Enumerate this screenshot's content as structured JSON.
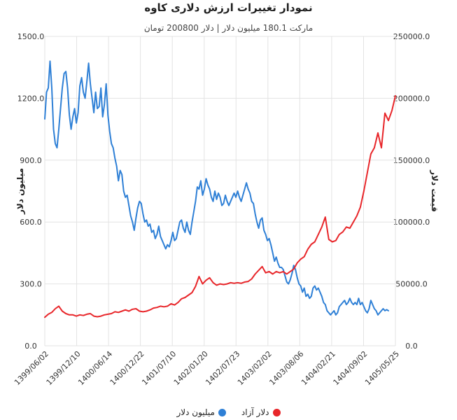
{
  "chart_data": {
    "type": "line",
    "title": "نمودار تغییرات ارزش دلاری کاوه",
    "subtitle": "مارکت 180.1 میلیون دلار | دلار 200800 تومان",
    "x_ticks": [
      "1399/06/02",
      "1399/12/10",
      "1400/06/14",
      "1400/12/22",
      "1401/07/10",
      "1402/01/20",
      "1402/07/23",
      "1403/02/02",
      "1403/08/06",
      "1404/02/21",
      "1404/09/02",
      "1405/05/25"
    ],
    "x_range": [
      0,
      100
    ],
    "y_left": {
      "label": "میلیون دلار",
      "lim": [
        0,
        1500
      ],
      "ticks": [
        "1500.0",
        "1200.0",
        "900.0",
        "600.0",
        "300.0",
        "0.0"
      ]
    },
    "y_right": {
      "label": "قیمت دلار",
      "lim": [
        0,
        250000
      ],
      "ticks": [
        "250000.0",
        "200000.0",
        "150000.0",
        "100000.0",
        "50000.0",
        "0.0"
      ]
    },
    "grid": true,
    "legend_position": "bottom",
    "series": [
      {
        "name": "میلیون دلار",
        "axis": "left",
        "color": "#2f80d6",
        "points": [
          [
            0,
            1100
          ],
          [
            0.5,
            1230
          ],
          [
            1.0,
            1250
          ],
          [
            1.5,
            1380
          ],
          [
            2.0,
            1250
          ],
          [
            2.5,
            1050
          ],
          [
            3.0,
            980
          ],
          [
            3.5,
            960
          ],
          [
            4.0,
            1050
          ],
          [
            4.5,
            1150
          ],
          [
            5.0,
            1250
          ],
          [
            5.5,
            1320
          ],
          [
            6.0,
            1330
          ],
          [
            6.5,
            1250
          ],
          [
            7.0,
            1120
          ],
          [
            7.5,
            1050
          ],
          [
            8.0,
            1110
          ],
          [
            8.5,
            1150
          ],
          [
            9.0,
            1080
          ],
          [
            9.5,
            1130
          ],
          [
            10.0,
            1260
          ],
          [
            10.5,
            1300
          ],
          [
            11.0,
            1230
          ],
          [
            11.5,
            1200
          ],
          [
            12.0,
            1280
          ],
          [
            12.5,
            1370
          ],
          [
            13.0,
            1270
          ],
          [
            13.5,
            1200
          ],
          [
            14.0,
            1130
          ],
          [
            14.5,
            1230
          ],
          [
            15.0,
            1150
          ],
          [
            15.5,
            1160
          ],
          [
            16.0,
            1250
          ],
          [
            16.5,
            1110
          ],
          [
            17.0,
            1170
          ],
          [
            17.5,
            1270
          ],
          [
            18.0,
            1120
          ],
          [
            18.5,
            1040
          ],
          [
            19.0,
            980
          ],
          [
            19.5,
            960
          ],
          [
            20.0,
            910
          ],
          [
            20.5,
            870
          ],
          [
            21.0,
            800
          ],
          [
            21.5,
            850
          ],
          [
            22.0,
            830
          ],
          [
            22.5,
            750
          ],
          [
            23.0,
            720
          ],
          [
            23.5,
            730
          ],
          [
            24.0,
            680
          ],
          [
            24.5,
            630
          ],
          [
            25.0,
            600
          ],
          [
            25.5,
            560
          ],
          [
            26.0,
            620
          ],
          [
            26.5,
            670
          ],
          [
            27.0,
            700
          ],
          [
            27.5,
            690
          ],
          [
            28.0,
            640
          ],
          [
            28.5,
            600
          ],
          [
            29.0,
            610
          ],
          [
            29.5,
            580
          ],
          [
            30.0,
            590
          ],
          [
            30.5,
            550
          ],
          [
            31.0,
            560
          ],
          [
            31.5,
            520
          ],
          [
            32.0,
            540
          ],
          [
            32.5,
            580
          ],
          [
            33.0,
            530
          ],
          [
            33.5,
            510
          ],
          [
            34.0,
            490
          ],
          [
            34.5,
            470
          ],
          [
            35.0,
            490
          ],
          [
            35.5,
            480
          ],
          [
            36.0,
            510
          ],
          [
            36.5,
            550
          ],
          [
            37.0,
            510
          ],
          [
            37.5,
            520
          ],
          [
            38.0,
            560
          ],
          [
            38.5,
            600
          ],
          [
            39.0,
            610
          ],
          [
            39.5,
            570
          ],
          [
            40.0,
            550
          ],
          [
            40.5,
            600
          ],
          [
            41.0,
            560
          ],
          [
            41.5,
            540
          ],
          [
            42.0,
            600
          ],
          [
            42.5,
            650
          ],
          [
            43.0,
            700
          ],
          [
            43.5,
            770
          ],
          [
            44.0,
            760
          ],
          [
            44.5,
            800
          ],
          [
            45.0,
            730
          ],
          [
            45.5,
            760
          ],
          [
            46.0,
            810
          ],
          [
            46.5,
            780
          ],
          [
            47.0,
            760
          ],
          [
            47.5,
            720
          ],
          [
            48.0,
            700
          ],
          [
            48.5,
            750
          ],
          [
            49.0,
            710
          ],
          [
            49.5,
            740
          ],
          [
            50.0,
            720
          ],
          [
            50.5,
            680
          ],
          [
            51.0,
            690
          ],
          [
            51.5,
            730
          ],
          [
            52.0,
            700
          ],
          [
            52.5,
            680
          ],
          [
            53.0,
            700
          ],
          [
            53.5,
            720
          ],
          [
            54.0,
            740
          ],
          [
            54.5,
            720
          ],
          [
            55.0,
            750
          ],
          [
            55.5,
            720
          ],
          [
            56.0,
            700
          ],
          [
            56.5,
            730
          ],
          [
            57.0,
            760
          ],
          [
            57.5,
            790
          ],
          [
            58.0,
            760
          ],
          [
            58.5,
            740
          ],
          [
            59.0,
            700
          ],
          [
            59.5,
            690
          ],
          [
            60.0,
            640
          ],
          [
            60.5,
            600
          ],
          [
            61.0,
            570
          ],
          [
            61.5,
            610
          ],
          [
            62.0,
            620
          ],
          [
            62.5,
            560
          ],
          [
            63.0,
            540
          ],
          [
            63.5,
            510
          ],
          [
            64.0,
            520
          ],
          [
            64.5,
            490
          ],
          [
            65.0,
            450
          ],
          [
            65.5,
            410
          ],
          [
            66.0,
            430
          ],
          [
            66.5,
            400
          ],
          [
            67.0,
            380
          ],
          [
            67.5,
            380
          ],
          [
            68.0,
            370
          ],
          [
            68.5,
            340
          ],
          [
            69.0,
            310
          ],
          [
            69.5,
            300
          ],
          [
            70.0,
            320
          ],
          [
            70.5,
            350
          ],
          [
            71.0,
            390
          ],
          [
            71.5,
            370
          ],
          [
            72.0,
            330
          ],
          [
            72.5,
            300
          ],
          [
            73.0,
            290
          ],
          [
            73.5,
            260
          ],
          [
            74.0,
            280
          ],
          [
            74.5,
            240
          ],
          [
            75.0,
            250
          ],
          [
            75.5,
            230
          ],
          [
            76.0,
            240
          ],
          [
            76.5,
            280
          ],
          [
            77.0,
            290
          ],
          [
            77.5,
            270
          ],
          [
            78.0,
            280
          ],
          [
            78.5,
            260
          ],
          [
            79.0,
            240
          ],
          [
            79.5,
            210
          ],
          [
            80.0,
            200
          ],
          [
            80.5,
            170
          ],
          [
            81.0,
            160
          ],
          [
            81.5,
            150
          ],
          [
            82.0,
            160
          ],
          [
            82.5,
            170
          ],
          [
            83.0,
            150
          ],
          [
            83.5,
            160
          ],
          [
            84.0,
            190
          ],
          [
            84.5,
            200
          ],
          [
            85.0,
            210
          ],
          [
            85.5,
            220
          ],
          [
            86.0,
            200
          ],
          [
            86.5,
            210
          ],
          [
            87.0,
            230
          ],
          [
            87.5,
            210
          ],
          [
            88.0,
            200
          ],
          [
            88.5,
            210
          ],
          [
            89.0,
            200
          ],
          [
            89.5,
            230
          ],
          [
            90.0,
            200
          ],
          [
            90.5,
            210
          ],
          [
            91.0,
            190
          ],
          [
            91.5,
            170
          ],
          [
            92.0,
            160
          ],
          [
            92.5,
            180
          ],
          [
            93.0,
            220
          ],
          [
            93.5,
            200
          ],
          [
            94.0,
            180
          ],
          [
            94.5,
            170
          ],
          [
            95.0,
            150
          ],
          [
            95.5,
            160
          ],
          [
            96.0,
            170
          ],
          [
            96.5,
            180
          ],
          [
            97.0,
            170
          ],
          [
            97.5,
            175
          ],
          [
            98.0,
            170
          ]
        ]
      },
      {
        "name": "دلار آزاد",
        "axis": "right",
        "color": "#e8262a",
        "points": [
          [
            0,
            23000
          ],
          [
            1.0,
            25500
          ],
          [
            2.0,
            27000
          ],
          [
            3.0,
            30000
          ],
          [
            4.0,
            32000
          ],
          [
            5.0,
            28000
          ],
          [
            6.0,
            26000
          ],
          [
            7.0,
            25000
          ],
          [
            8.0,
            25000
          ],
          [
            9.0,
            24000
          ],
          [
            10.0,
            25000
          ],
          [
            11.0,
            24500
          ],
          [
            12.0,
            25500
          ],
          [
            13.0,
            26000
          ],
          [
            14.0,
            24000
          ],
          [
            15.0,
            23500
          ],
          [
            16.0,
            24000
          ],
          [
            17.0,
            25000
          ],
          [
            18.0,
            25500
          ],
          [
            19.0,
            26000
          ],
          [
            20.0,
            27500
          ],
          [
            21.0,
            27000
          ],
          [
            22.0,
            28000
          ],
          [
            23.0,
            29000
          ],
          [
            24.0,
            28000
          ],
          [
            25.0,
            29500
          ],
          [
            26.0,
            30000
          ],
          [
            27.0,
            28000
          ],
          [
            28.0,
            27500
          ],
          [
            29.0,
            28000
          ],
          [
            30.0,
            29000
          ],
          [
            31.0,
            30500
          ],
          [
            32.0,
            31000
          ],
          [
            33.0,
            32000
          ],
          [
            34.0,
            31500
          ],
          [
            35.0,
            32000
          ],
          [
            36.0,
            34000
          ],
          [
            37.0,
            33000
          ],
          [
            38.0,
            35000
          ],
          [
            39.0,
            38000
          ],
          [
            40.0,
            39000
          ],
          [
            41.0,
            41000
          ],
          [
            42.0,
            43000
          ],
          [
            43.0,
            48000
          ],
          [
            44.0,
            56000
          ],
          [
            45.0,
            50000
          ],
          [
            46.0,
            53000
          ],
          [
            47.0,
            55000
          ],
          [
            48.0,
            51000
          ],
          [
            49.0,
            49000
          ],
          [
            50.0,
            50000
          ],
          [
            51.0,
            49500
          ],
          [
            52.0,
            50000
          ],
          [
            53.0,
            51000
          ],
          [
            54.0,
            50500
          ],
          [
            55.0,
            51000
          ],
          [
            56.0,
            50500
          ],
          [
            57.0,
            51500
          ],
          [
            58.0,
            52000
          ],
          [
            59.0,
            54000
          ],
          [
            60.0,
            58000
          ],
          [
            61.0,
            61000
          ],
          [
            62.0,
            64000
          ],
          [
            63.0,
            59000
          ],
          [
            64.0,
            60000
          ],
          [
            65.0,
            58000
          ],
          [
            66.0,
            60000
          ],
          [
            67.0,
            59000
          ],
          [
            68.0,
            60000
          ],
          [
            69.0,
            58000
          ],
          [
            70.0,
            60000
          ],
          [
            71.0,
            62000
          ],
          [
            72.0,
            67000
          ],
          [
            73.0,
            70000
          ],
          [
            74.0,
            72000
          ],
          [
            75.0,
            78000
          ],
          [
            76.0,
            82000
          ],
          [
            77.0,
            84000
          ],
          [
            78.0,
            90000
          ],
          [
            79.0,
            96000
          ],
          [
            80.0,
            104000
          ],
          [
            81.0,
            86000
          ],
          [
            82.0,
            84000
          ],
          [
            83.0,
            85000
          ],
          [
            84.0,
            90000
          ],
          [
            85.0,
            92000
          ],
          [
            86.0,
            96000
          ],
          [
            87.0,
            95000
          ],
          [
            88.0,
            100000
          ],
          [
            89.0,
            105000
          ],
          [
            90.0,
            112000
          ],
          [
            91.0,
            125000
          ],
          [
            92.0,
            140000
          ],
          [
            93.0,
            155000
          ],
          [
            94.0,
            160000
          ],
          [
            95.0,
            172000
          ],
          [
            96.0,
            160000
          ],
          [
            97.0,
            188000
          ],
          [
            98.0,
            182000
          ],
          [
            99.0,
            190000
          ],
          [
            100.0,
            202000
          ]
        ]
      }
    ]
  }
}
